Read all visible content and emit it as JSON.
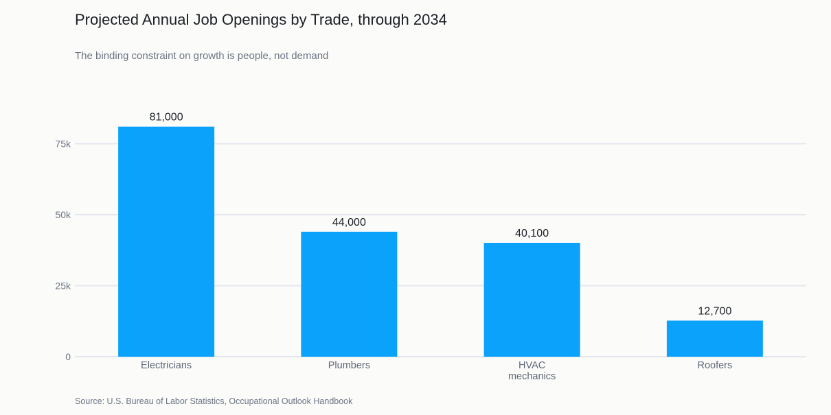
{
  "header": {
    "title": "Projected Annual Job Openings by Trade, through 2034",
    "subtitle": "The binding constraint on growth is people, not demand"
  },
  "footer": {
    "source": "Source: U.S. Bureau of Labor Statistics, Occupational Outlook Handbook"
  },
  "colors": {
    "bar": "#0aa2fb",
    "grid": "#e4e7ef",
    "axis_text": "#6b7585",
    "label_text": "#1b1f26"
  },
  "chart_data": {
    "type": "bar",
    "title": "Projected Annual Job Openings by Trade, through 2034",
    "subtitle": "The binding constraint on growth is people, not demand",
    "xlabel": "",
    "ylabel": "",
    "categories": [
      [
        "Electricians"
      ],
      [
        "Plumbers"
      ],
      [
        "HVAC",
        "mechanics"
      ],
      [
        "Roofers"
      ]
    ],
    "values": [
      81000,
      44000,
      40100,
      12700
    ],
    "data_labels": [
      "81,000",
      "44,000",
      "40,100",
      "12,700"
    ],
    "ylim": [
      0,
      81000
    ],
    "yticks": [
      0,
      25000,
      50000,
      75000
    ],
    "ytick_labels": [
      "0",
      "25k",
      "50k",
      "75k"
    ],
    "grid": true,
    "legend": "none"
  }
}
